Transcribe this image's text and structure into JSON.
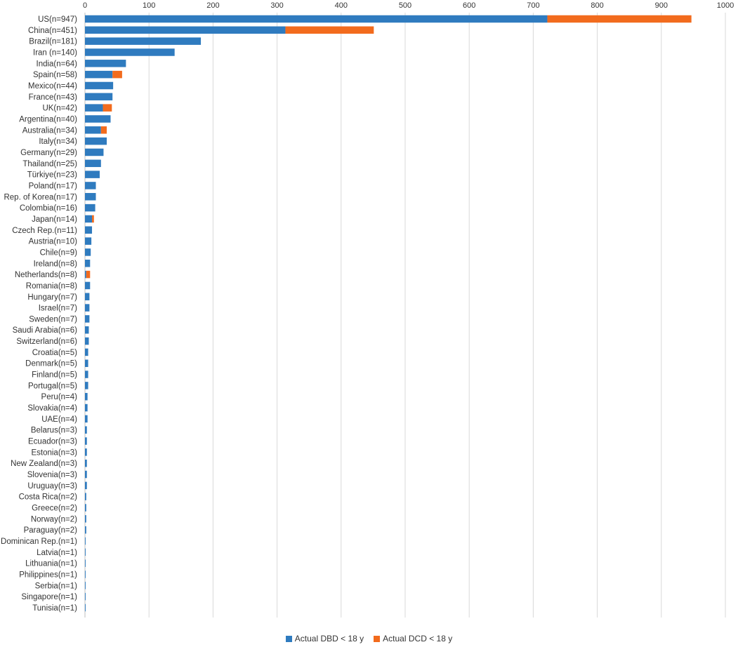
{
  "chart_data": {
    "type": "bar",
    "orientation": "horizontal",
    "stacked": true,
    "title": "",
    "xlabel": "",
    "ylabel": "",
    "xlim": [
      0,
      1000
    ],
    "x_ticks": [
      "0",
      "100",
      "200",
      "300",
      "400",
      "500",
      "600",
      "700",
      "800",
      "900",
      "1000"
    ],
    "x_axis_position": "top",
    "grid": "vertical",
    "legend_position": "bottom",
    "categories": [
      "US(n=947)",
      "China(n=451)",
      "Brazil(n=181)",
      "Iran (n=140)",
      "India(n=64)",
      "Spain(n=58)",
      "Mexico(n=44)",
      "France(n=43)",
      "UK(n=42)",
      "Argentina(n=40)",
      "Australia(n=34)",
      "Italy(n=34)",
      "Germany(n=29)",
      "Thailand(n=25)",
      "Türkiye(n=23)",
      "Poland(n=17)",
      "Rep. of Korea(n=17)",
      "Colombia(n=16)",
      "Japan(n=14)",
      "Czech Rep.(n=11)",
      "Austria(n=10)",
      "Chile(n=9)",
      "Ireland(n=8)",
      "Netherlands(n=8)",
      "Romania(n=8)",
      "Hungary(n=7)",
      "Israel(n=7)",
      "Sweden(n=7)",
      "Saudi Arabia(n=6)",
      "Switzerland(n=6)",
      "Croatia(n=5)",
      "Denmark(n=5)",
      "Finland(n=5)",
      "Portugal(n=5)",
      "Peru(n=4)",
      "Slovakia(n=4)",
      "UAE(n=4)",
      "Belarus(n=3)",
      "Ecuador(n=3)",
      "Estonia(n=3)",
      "New Zealand(n=3)",
      "Slovenia(n=3)",
      "Uruguay(n=3)",
      "Costa Rica(n=2)",
      "Greece(n=2)",
      "Norway(n=2)",
      "Paraguay(n=2)",
      "Dominican Rep.(n=1)",
      "Latvia(n=1)",
      "Lithuania(n=1)",
      "Philippines(n=1)",
      "Serbia(n=1)",
      "Singapore(n=1)",
      "Tunisia(n=1)"
    ],
    "series": [
      {
        "name": "Actual DBD < 18 y",
        "color": "#2f7bbf",
        "values": [
          722,
          313,
          181,
          140,
          64,
          43,
          44,
          43,
          28,
          40,
          25,
          34,
          29,
          25,
          23,
          17,
          17,
          16,
          11,
          11,
          10,
          9,
          8,
          2,
          8,
          7,
          7,
          7,
          6,
          6,
          5,
          5,
          5,
          5,
          4,
          4,
          4,
          3,
          3,
          3,
          3,
          3,
          3,
          2,
          2,
          2,
          2,
          1,
          1,
          1,
          1,
          1,
          1,
          1
        ]
      },
      {
        "name": "Actual DCD < 18 y",
        "color": "#f26b1d",
        "values": [
          225,
          138,
          0,
          0,
          0,
          15,
          0,
          0,
          14,
          0,
          9,
          0,
          0,
          0,
          0,
          0,
          0,
          0,
          3,
          0,
          0,
          0,
          0,
          6,
          0,
          0,
          0,
          0,
          0,
          0,
          0,
          0,
          0,
          0,
          0,
          0,
          0,
          0,
          0,
          0,
          0,
          0,
          0,
          0,
          0,
          0,
          0,
          0,
          0,
          0,
          0,
          0,
          0,
          0
        ]
      }
    ]
  }
}
